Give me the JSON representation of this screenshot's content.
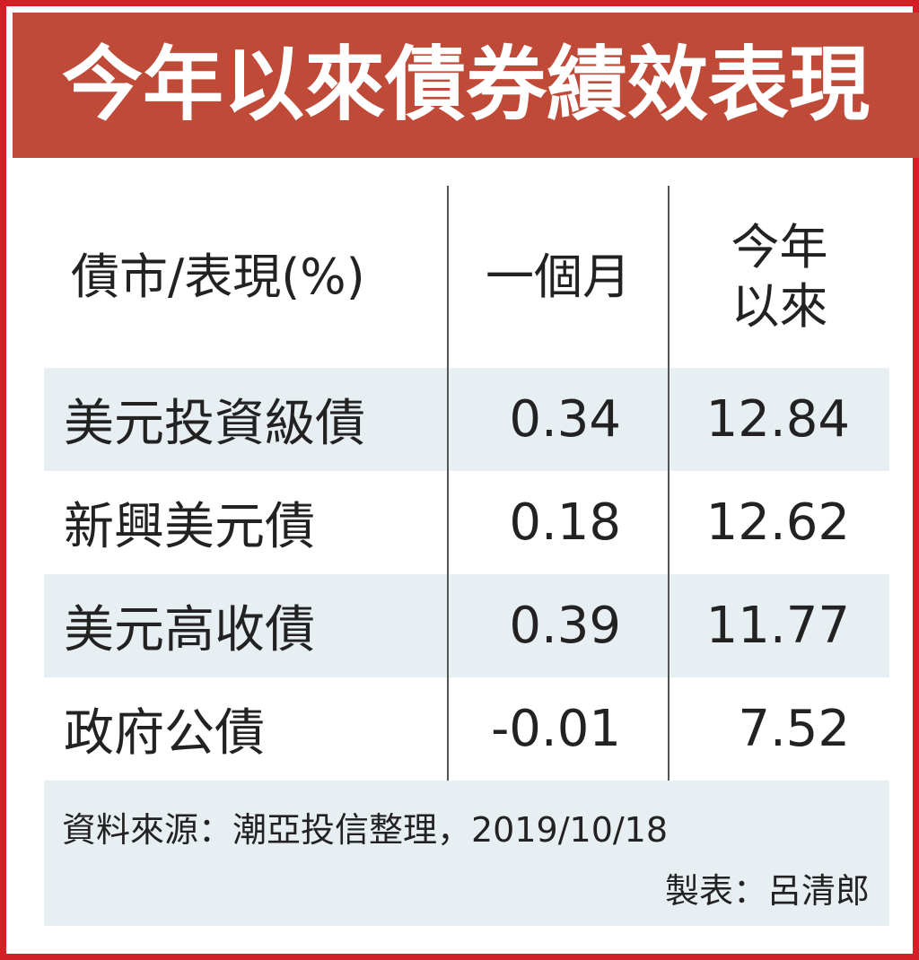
{
  "title": "今年以來債券績效表現",
  "table": {
    "headers": {
      "col1": "債市/表現(%)",
      "col2": "一個月",
      "col3_line1": "今年",
      "col3_line2": "以來"
    },
    "rows": [
      {
        "name": "美元投資級債",
        "one_month": "0.34",
        "ytd": "12.84"
      },
      {
        "name": "新興美元債",
        "one_month": "0.18",
        "ytd": "12.62"
      },
      {
        "name": "美元高收債",
        "one_month": "0.39",
        "ytd": "11.77"
      },
      {
        "name": "政府公債",
        "one_month": "-0.01",
        "ytd": "7.52"
      }
    ]
  },
  "footer": {
    "source": "資料來源：潮亞投信整理，2019/10/18",
    "maker": "製表：呂清郎"
  },
  "colors": {
    "border": "#d31f26",
    "banner": "#c04a38",
    "shade": "#e8eff2"
  }
}
